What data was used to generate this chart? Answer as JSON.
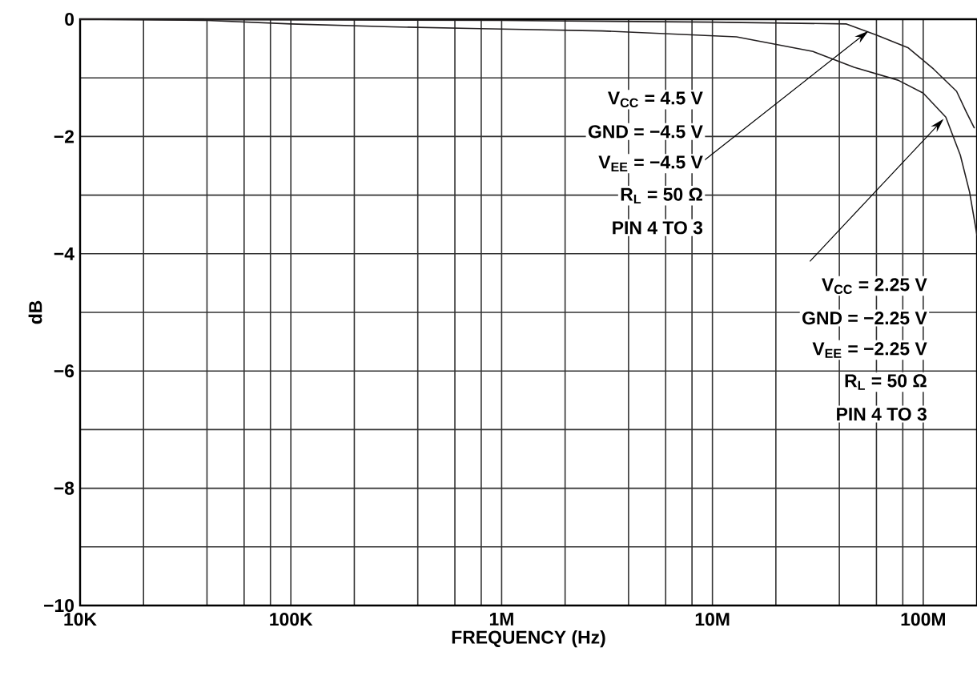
{
  "chart_data": {
    "type": "line",
    "xlabel": "FREQUENCY (Hz)",
    "ylabel": "dB",
    "log": "x",
    "grid": true,
    "line_style": "solid",
    "xlim": [
      10000,
      180000000
    ],
    "ylim": [
      -10,
      0
    ],
    "xticks": [
      {
        "value": 10000,
        "label": "10K"
      },
      {
        "value": 20000,
        "label": null
      },
      {
        "value": 40000,
        "label": null
      },
      {
        "value": 60000,
        "label": null
      },
      {
        "value": 80000,
        "label": null
      },
      {
        "value": 100000,
        "label": "100K"
      },
      {
        "value": 200000,
        "label": null
      },
      {
        "value": 400000,
        "label": null
      },
      {
        "value": 600000,
        "label": null
      },
      {
        "value": 800000,
        "label": null
      },
      {
        "value": 1000000,
        "label": "1M"
      },
      {
        "value": 2000000,
        "label": null
      },
      {
        "value": 4000000,
        "label": null
      },
      {
        "value": 6000000,
        "label": null
      },
      {
        "value": 8000000,
        "label": null
      },
      {
        "value": 10000000,
        "label": "10M"
      },
      {
        "value": 20000000,
        "label": null
      },
      {
        "value": 40000000,
        "label": null
      },
      {
        "value": 60000000,
        "label": null
      },
      {
        "value": 80000000,
        "label": null
      },
      {
        "value": 100000000,
        "label": "100M"
      }
    ],
    "yticks": [
      {
        "value": -10,
        "label": "−10"
      },
      {
        "value": -9,
        "label": null
      },
      {
        "value": -8,
        "label": "−8"
      },
      {
        "value": -7,
        "label": null
      },
      {
        "value": -6,
        "label": "−6"
      },
      {
        "value": -5,
        "label": null
      },
      {
        "value": -4,
        "label": "−4"
      },
      {
        "value": -3,
        "label": null
      },
      {
        "value": -2,
        "label": "−2"
      },
      {
        "value": -1,
        "label": null
      },
      {
        "value": 0,
        "label": "0"
      }
    ],
    "series": [
      {
        "color": "#231f20",
        "x": [
          10000,
          1000000,
          10000000,
          43000000,
          60000000,
          85000000,
          112000000,
          144000000,
          160000000,
          175000000
        ],
        "values": [
          0,
          -0.02,
          -0.05,
          -0.08,
          -0.27,
          -0.49,
          -0.85,
          -1.23,
          -1.58,
          -1.86
        ]
      },
      {
        "color": "#231f20",
        "x": [
          10000,
          40000,
          100000,
          300000,
          790000,
          3000000,
          13000000,
          30000000,
          47000000,
          76000000,
          100000000,
          128000000,
          150000000,
          166000000,
          180000000
        ],
        "values": [
          0,
          -0.02,
          -0.08,
          -0.13,
          -0.16,
          -0.2,
          -0.3,
          -0.55,
          -0.82,
          -1.04,
          -1.26,
          -1.67,
          -2.32,
          -2.95,
          -3.69
        ]
      }
    ],
    "annotations": [
      "V$_{CC}$ = 4.5 V",
      "GND = −4.5 V",
      {
        "text": "V$_{EE}$ = −4.5 V",
        "x": 55000000,
        "y": -0.2
      },
      "R$_{L}$ = 50 Ω",
      "PIN 4 TO 3",
      {
        "text": "V$_{CC}$ = 2.25 V",
        "x": 125000000,
        "y": -1.7
      },
      "GND = −2.25 V",
      "V$_{EE}$ = −2.25 V",
      "R$_{L}$ = 50 Ω",
      "PIN 4 TO 3"
    ]
  }
}
